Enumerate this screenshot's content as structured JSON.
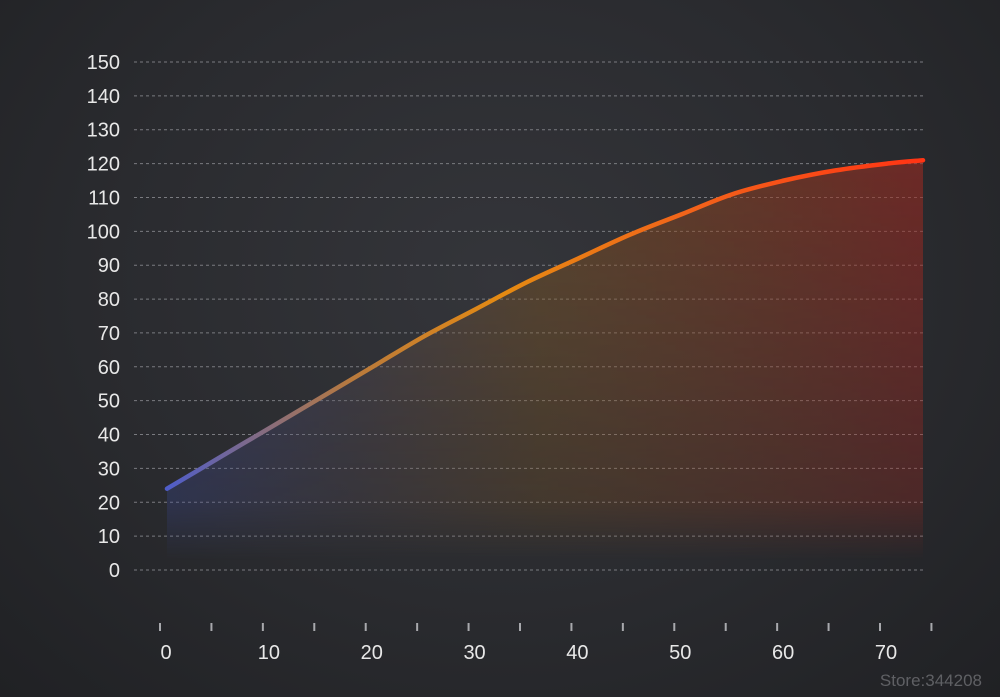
{
  "chart_data": {
    "type": "area",
    "x": [
      0,
      5,
      10,
      15,
      20,
      25,
      30,
      35,
      40,
      45,
      50,
      55,
      60,
      65,
      70,
      73.5
    ],
    "series": [
      {
        "values": [
          24,
          33,
          42,
          51,
          60,
          69,
          77,
          85,
          92,
          99,
          105,
          111,
          115,
          118,
          120,
          121
        ]
      }
    ],
    "xticks": [
      0,
      10,
      20,
      30,
      40,
      50,
      60,
      70
    ],
    "yticks": [
      0,
      10,
      20,
      30,
      40,
      50,
      60,
      70,
      80,
      90,
      100,
      110,
      120,
      130,
      140,
      150
    ],
    "xlim": [
      0,
      75
    ],
    "ylim": [
      0,
      150
    ],
    "grid": "horizontal-dashed",
    "colors": {
      "start": "#4f5dc9",
      "middle": "#e58a12",
      "end": "#ff3514",
      "grid": "#7a7b80",
      "text": "#e8e8e8"
    }
  },
  "watermark": "Store:344208"
}
